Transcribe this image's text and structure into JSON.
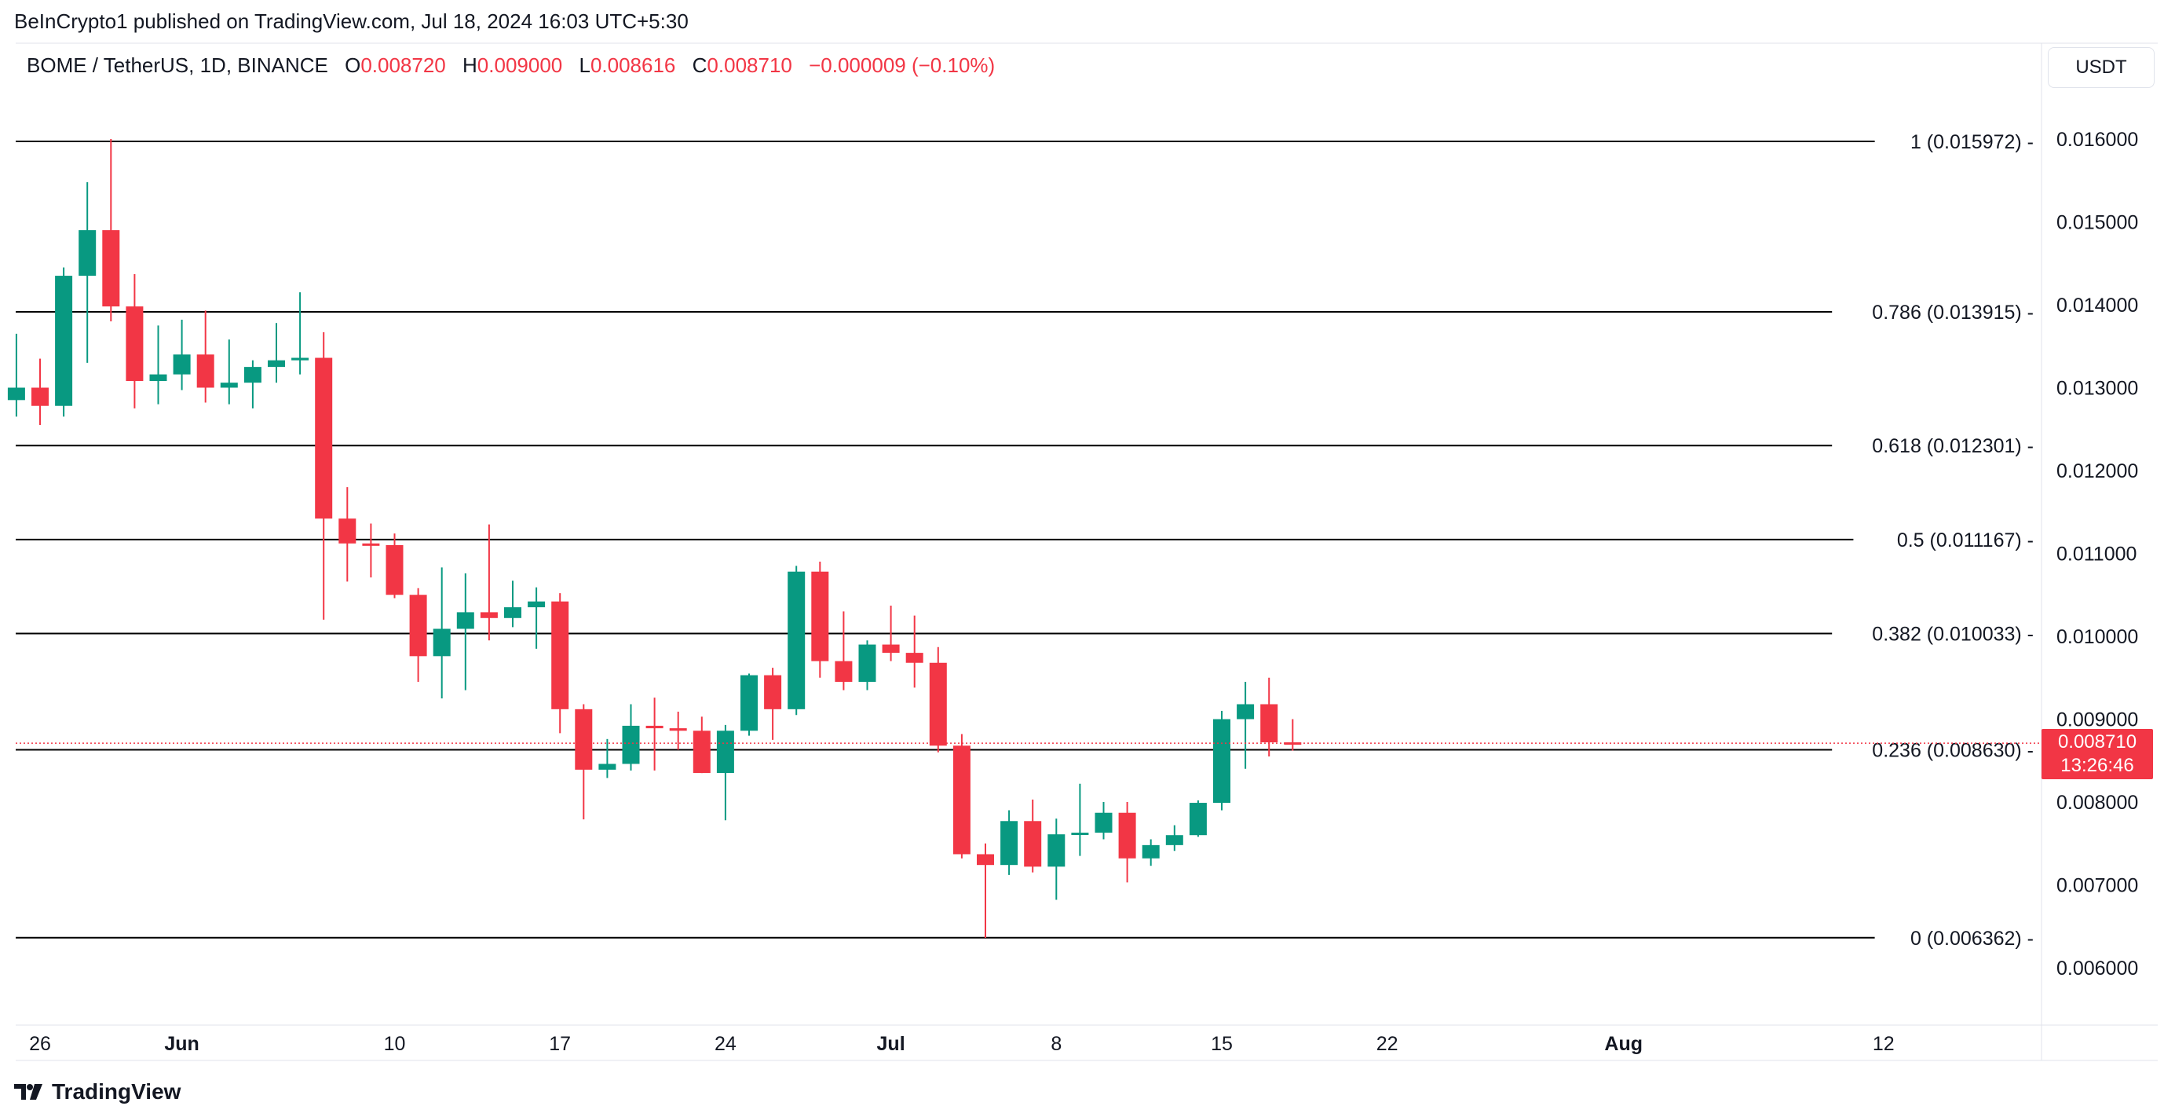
{
  "attribution": "BeInCrypto1 published on TradingView.com, Jul 18, 2024 16:03 UTC+5:30",
  "legend": {
    "symbol": "BOME / TetherUS, 1D, BINANCE",
    "o_label": "O",
    "o_value": "0.008720",
    "h_label": "H",
    "h_value": "0.009000",
    "l_label": "L",
    "l_value": "0.008616",
    "c_label": "C",
    "c_value": "0.008710",
    "change": "−0.000009 (−0.10%)"
  },
  "currency_button": "USDT",
  "current_price": {
    "value": "0.008710",
    "countdown": "13:26:46"
  },
  "footer_brand": "TradingView",
  "colors": {
    "up": "#089981",
    "down": "#f23645",
    "fib_line": "#000000",
    "grid_text": "#131722"
  },
  "chart_data": {
    "type": "candlestick",
    "title": "BOME / TetherUS, 1D, BINANCE",
    "ylim": [
      0.0055,
      0.0172
    ],
    "y_ticks": [
      0.016,
      0.015,
      0.014,
      0.013,
      0.012,
      0.011,
      0.01,
      0.009,
      0.008,
      0.007,
      0.006
    ],
    "y_tick_labels": [
      "0.016000",
      "0.015000",
      "0.014000",
      "0.013000",
      "0.012000",
      "0.011000",
      "0.010000",
      "0.009000",
      "0.008000",
      "0.007000",
      "0.006000"
    ],
    "x_ticks": [
      {
        "label": "26",
        "date": "2024-05-26"
      },
      {
        "label": "Jun",
        "date": "2024-06-01"
      },
      {
        "label": "10",
        "date": "2024-06-10"
      },
      {
        "label": "17",
        "date": "2024-06-17"
      },
      {
        "label": "24",
        "date": "2024-06-24"
      },
      {
        "label": "Jul",
        "date": "2024-07-01"
      },
      {
        "label": "8",
        "date": "2024-07-08"
      },
      {
        "label": "15",
        "date": "2024-07-15"
      },
      {
        "label": "22",
        "date": "2024-07-22"
      },
      {
        "label": "Aug",
        "date": "2024-08-01"
      },
      {
        "label": "12",
        "date": "2024-08-12"
      }
    ],
    "fib_levels": [
      {
        "label": "1 (0.015972)",
        "value": 0.015972
      },
      {
        "label": "0.786 (0.013915)",
        "value": 0.013915
      },
      {
        "label": "0.618 (0.012301)",
        "value": 0.012301
      },
      {
        "label": "0.5 (0.011167)",
        "value": 0.011167
      },
      {
        "label": "0.382 (0.010033)",
        "value": 0.010033
      },
      {
        "label": "0.236 (0.008630)",
        "value": 0.00863
      },
      {
        "label": "0 (0.006362)",
        "value": 0.006362
      }
    ],
    "current_price": 0.00871,
    "candles": [
      {
        "date": "2024-05-25",
        "o": 0.01285,
        "h": 0.01365,
        "l": 0.01265,
        "c": 0.013
      },
      {
        "date": "2024-05-26",
        "o": 0.013,
        "h": 0.01335,
        "l": 0.01255,
        "c": 0.01278
      },
      {
        "date": "2024-05-27",
        "o": 0.01278,
        "h": 0.01445,
        "l": 0.01265,
        "c": 0.01435
      },
      {
        "date": "2024-05-28",
        "o": 0.01435,
        "h": 0.01548,
        "l": 0.0133,
        "c": 0.0149
      },
      {
        "date": "2024-05-29",
        "o": 0.0149,
        "h": 0.016,
        "l": 0.0138,
        "c": 0.01398
      },
      {
        "date": "2024-05-30",
        "o": 0.01398,
        "h": 0.01437,
        "l": 0.01275,
        "c": 0.01308
      },
      {
        "date": "2024-05-31",
        "o": 0.01308,
        "h": 0.01375,
        "l": 0.0128,
        "c": 0.01316
      },
      {
        "date": "2024-06-01",
        "o": 0.01316,
        "h": 0.01382,
        "l": 0.01297,
        "c": 0.0134
      },
      {
        "date": "2024-06-02",
        "o": 0.0134,
        "h": 0.01393,
        "l": 0.01282,
        "c": 0.013
      },
      {
        "date": "2024-06-03",
        "o": 0.013,
        "h": 0.01358,
        "l": 0.0128,
        "c": 0.01306
      },
      {
        "date": "2024-06-04",
        "o": 0.01306,
        "h": 0.01333,
        "l": 0.01275,
        "c": 0.01325
      },
      {
        "date": "2024-06-05",
        "o": 0.01325,
        "h": 0.01378,
        "l": 0.01306,
        "c": 0.01333
      },
      {
        "date": "2024-06-06",
        "o": 0.01333,
        "h": 0.01415,
        "l": 0.01316,
        "c": 0.01336
      },
      {
        "date": "2024-06-07",
        "o": 0.01336,
        "h": 0.01367,
        "l": 0.0102,
        "c": 0.01142
      },
      {
        "date": "2024-06-08",
        "o": 0.01142,
        "h": 0.0118,
        "l": 0.01066,
        "c": 0.01112
      },
      {
        "date": "2024-06-09",
        "o": 0.01112,
        "h": 0.01136,
        "l": 0.01071,
        "c": 0.0111
      },
      {
        "date": "2024-06-10",
        "o": 0.0111,
        "h": 0.01124,
        "l": 0.01046,
        "c": 0.0105
      },
      {
        "date": "2024-06-11",
        "o": 0.0105,
        "h": 0.01058,
        "l": 0.00945,
        "c": 0.00976
      },
      {
        "date": "2024-06-12",
        "o": 0.00976,
        "h": 0.01083,
        "l": 0.00925,
        "c": 0.01009
      },
      {
        "date": "2024-06-13",
        "o": 0.01009,
        "h": 0.01076,
        "l": 0.00935,
        "c": 0.01029
      },
      {
        "date": "2024-06-14",
        "o": 0.01029,
        "h": 0.01135,
        "l": 0.00995,
        "c": 0.01022
      },
      {
        "date": "2024-06-15",
        "o": 0.01022,
        "h": 0.01067,
        "l": 0.01011,
        "c": 0.01035
      },
      {
        "date": "2024-06-16",
        "o": 0.01035,
        "h": 0.01059,
        "l": 0.00985,
        "c": 0.01042
      },
      {
        "date": "2024-06-17",
        "o": 0.01042,
        "h": 0.01052,
        "l": 0.00883,
        "c": 0.00912
      },
      {
        "date": "2024-06-18",
        "o": 0.00912,
        "h": 0.00918,
        "l": 0.00779,
        "c": 0.00839
      },
      {
        "date": "2024-06-19",
        "o": 0.00839,
        "h": 0.00876,
        "l": 0.00829,
        "c": 0.00846
      },
      {
        "date": "2024-06-20",
        "o": 0.00846,
        "h": 0.00918,
        "l": 0.00838,
        "c": 0.00892
      },
      {
        "date": "2024-06-21",
        "o": 0.00892,
        "h": 0.00926,
        "l": 0.00838,
        "c": 0.00889
      },
      {
        "date": "2024-06-22",
        "o": 0.00889,
        "h": 0.00909,
        "l": 0.00863,
        "c": 0.00886
      },
      {
        "date": "2024-06-23",
        "o": 0.00886,
        "h": 0.00903,
        "l": 0.00835,
        "c": 0.00835
      },
      {
        "date": "2024-06-24",
        "o": 0.00835,
        "h": 0.00893,
        "l": 0.00778,
        "c": 0.00886
      },
      {
        "date": "2024-06-25",
        "o": 0.00886,
        "h": 0.00955,
        "l": 0.0088,
        "c": 0.00953
      },
      {
        "date": "2024-06-26",
        "o": 0.00953,
        "h": 0.00962,
        "l": 0.00875,
        "c": 0.00912
      },
      {
        "date": "2024-06-27",
        "o": 0.00912,
        "h": 0.01085,
        "l": 0.00905,
        "c": 0.01078
      },
      {
        "date": "2024-06-28",
        "o": 0.01078,
        "h": 0.0109,
        "l": 0.0095,
        "c": 0.0097
      },
      {
        "date": "2024-06-29",
        "o": 0.0097,
        "h": 0.0103,
        "l": 0.00935,
        "c": 0.00945
      },
      {
        "date": "2024-06-30",
        "o": 0.00945,
        "h": 0.00995,
        "l": 0.00935,
        "c": 0.0099
      },
      {
        "date": "2024-07-01",
        "o": 0.0099,
        "h": 0.01037,
        "l": 0.0097,
        "c": 0.0098
      },
      {
        "date": "2024-07-02",
        "o": 0.0098,
        "h": 0.01025,
        "l": 0.00938,
        "c": 0.00968
      },
      {
        "date": "2024-07-03",
        "o": 0.00968,
        "h": 0.00987,
        "l": 0.0086,
        "c": 0.00868
      },
      {
        "date": "2024-07-04",
        "o": 0.00868,
        "h": 0.00882,
        "l": 0.00732,
        "c": 0.00737
      },
      {
        "date": "2024-07-05",
        "o": 0.00737,
        "h": 0.0075,
        "l": 0.00636,
        "c": 0.00724
      },
      {
        "date": "2024-07-06",
        "o": 0.00724,
        "h": 0.0079,
        "l": 0.00712,
        "c": 0.00777
      },
      {
        "date": "2024-07-07",
        "o": 0.00777,
        "h": 0.00803,
        "l": 0.00715,
        "c": 0.00722
      },
      {
        "date": "2024-07-08",
        "o": 0.00722,
        "h": 0.0078,
        "l": 0.00682,
        "c": 0.00761
      },
      {
        "date": "2024-07-09",
        "o": 0.00761,
        "h": 0.00822,
        "l": 0.00735,
        "c": 0.00763
      },
      {
        "date": "2024-07-10",
        "o": 0.00763,
        "h": 0.008,
        "l": 0.00755,
        "c": 0.00787
      },
      {
        "date": "2024-07-11",
        "o": 0.00787,
        "h": 0.008,
        "l": 0.00703,
        "c": 0.00732
      },
      {
        "date": "2024-07-12",
        "o": 0.00732,
        "h": 0.00755,
        "l": 0.00723,
        "c": 0.00748
      },
      {
        "date": "2024-07-13",
        "o": 0.00748,
        "h": 0.00772,
        "l": 0.00741,
        "c": 0.0076
      },
      {
        "date": "2024-07-14",
        "o": 0.0076,
        "h": 0.00802,
        "l": 0.00758,
        "c": 0.00799
      },
      {
        "date": "2024-07-15",
        "o": 0.00799,
        "h": 0.0091,
        "l": 0.0079,
        "c": 0.009
      },
      {
        "date": "2024-07-16",
        "o": 0.009,
        "h": 0.00945,
        "l": 0.0084,
        "c": 0.00918
      },
      {
        "date": "2024-07-17",
        "o": 0.00918,
        "h": 0.0095,
        "l": 0.00855,
        "c": 0.00872
      },
      {
        "date": "2024-07-18",
        "o": 0.00872,
        "h": 0.009,
        "l": 0.00862,
        "c": 0.00871
      }
    ]
  }
}
